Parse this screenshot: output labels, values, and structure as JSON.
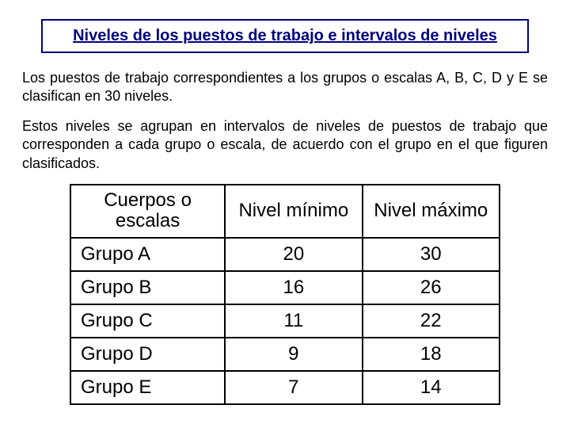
{
  "title": "Niveles de los  puestos de trabajo e intervalos de niveles",
  "paragraph1": "Los puestos de  trabajo correspondientes  a los grupos  o escalas  A, B, C, D y E se clasifican  en 30 niveles.",
  "paragraph2": "Estos niveles se agrupan  en intervalos  de niveles de puestos de trabajo que corresponden  a cada grupo  o escala, de acuerdo  con el grupo  en el que figuren clasificados.",
  "table": {
    "type": "table",
    "columns": [
      "Cuerpos o escalas",
      "Nivel mínimo",
      "Nivel máximo"
    ],
    "rows": [
      [
        "Grupo A",
        "20",
        "30"
      ],
      [
        "Grupo B",
        "16",
        "26"
      ],
      [
        "Grupo C",
        "11",
        "22"
      ],
      [
        "Grupo D",
        "9",
        "18"
      ],
      [
        "Grupo E",
        "7",
        "14"
      ]
    ],
    "border_color": "#000000",
    "title_border_color": "#000080",
    "title_text_color": "#000080",
    "background_color": "#ffffff",
    "header_fontsize": 24,
    "cell_fontsize": 24,
    "col_widths_pct": [
      36,
      32,
      32
    ],
    "col_align": [
      "left",
      "center",
      "center"
    ]
  }
}
